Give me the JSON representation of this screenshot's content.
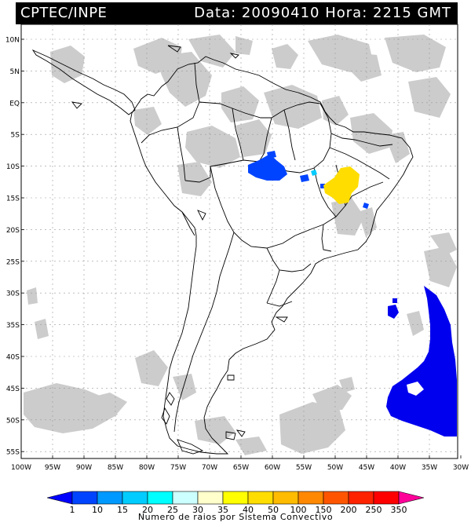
{
  "header": {
    "left": "CPTEC/INPE",
    "right": "Data: 20090410 Hora: 2215 GMT"
  },
  "axes": {
    "lat_labels": [
      "10N",
      "5N",
      "EQ",
      "5S",
      "10S",
      "15S",
      "20S",
      "25S",
      "30S",
      "35S",
      "40S",
      "45S",
      "50S",
      "55S"
    ],
    "lat_values": [
      10,
      5,
      0,
      -5,
      -10,
      -15,
      -20,
      -25,
      -30,
      -35,
      -40,
      -45,
      -50,
      -55
    ],
    "lon_labels": [
      "100W",
      "95W",
      "90W",
      "85W",
      "80W",
      "75W",
      "70W",
      "65W",
      "60W",
      "55W",
      "50W",
      "45W",
      "40W",
      "35W",
      "30W"
    ],
    "lon_values": [
      -100,
      -95,
      -90,
      -85,
      -80,
      -75,
      -70,
      -65,
      -60,
      -55,
      -50,
      -45,
      -40,
      -35,
      -30
    ]
  },
  "colorbar": {
    "labels": [
      "1",
      "10",
      "15",
      "20",
      "25",
      "30",
      "35",
      "40",
      "50",
      "100",
      "150",
      "200",
      "250",
      "350"
    ],
    "colors": [
      "#0000ff",
      "#0044ff",
      "#0099ff",
      "#00ccff",
      "#00ffff",
      "#ccffff",
      "#ffffcc",
      "#ffff00",
      "#ffdd00",
      "#ffbb00",
      "#ff8800",
      "#ff5500",
      "#ff2200",
      "#ff0000",
      "#ff0099"
    ],
    "caption": "Numero de raios por Sistema Convectivo"
  },
  "map_colors": {
    "cloud": "#cccccc",
    "coast": "#000000",
    "grid": "#999999"
  },
  "features": {
    "lightning_blue_west": {
      "label": "convective system",
      "lon": -57,
      "lat": -11,
      "color": "#0044ff"
    },
    "lightning_yellow": {
      "label": "convective system",
      "lon": -45.5,
      "lat": -13,
      "color": "#ffdd00"
    },
    "lightning_blue_atlantic": {
      "label": "convective system",
      "lon": -33,
      "lat": -42,
      "color": "#0000ee"
    }
  }
}
